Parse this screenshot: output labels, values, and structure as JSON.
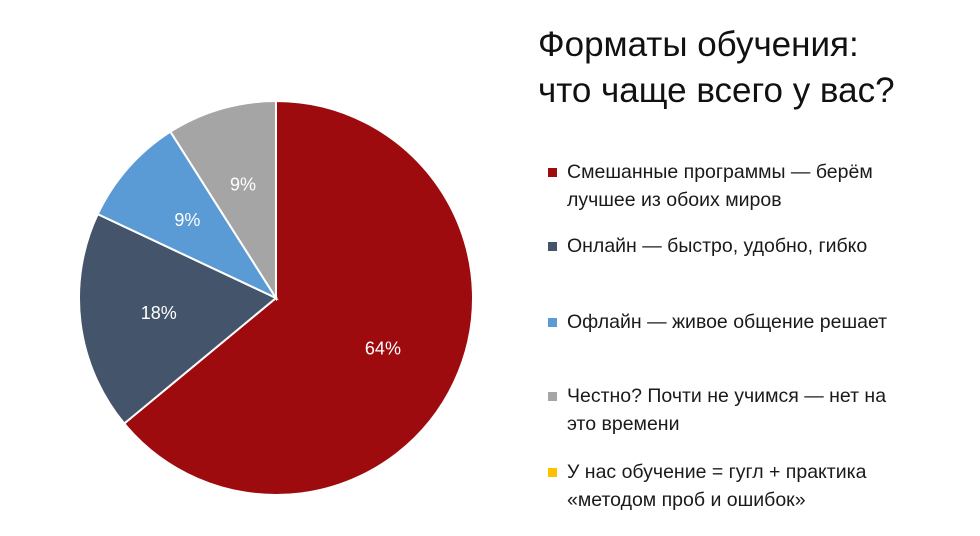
{
  "title": "Форматы обучения:\nчто чаще всего у вас?",
  "chart_data": {
    "type": "pie",
    "title": "Форматы обучения: что чаще всего у вас?",
    "slices": [
      {
        "label": "Смешанные программы — берём лучшее из обоих миров",
        "value": 64,
        "display": "64%",
        "color": "#9E0B0F"
      },
      {
        "label": "Онлайн — быстро, удобно, гибко",
        "value": 18,
        "display": "18%",
        "color": "#44546A"
      },
      {
        "label": "Офлайн — живое общение решает",
        "value": 9,
        "display": "9%",
        "color": "#5B9BD5"
      },
      {
        "label": "Честно? Почти не учимся — нет на это времени",
        "value": 9,
        "display": "9%",
        "color": "#A5A5A5"
      },
      {
        "label": "У нас обучение = гугл + практика «методом проб и ошибок»",
        "value": 0,
        "display": "",
        "color": "#FFC000"
      }
    ],
    "legend_position": "right"
  },
  "legend": [
    {
      "text": "Смешанные программы — берём\nлучшее из обоих миров",
      "color": "#9E0B0F"
    },
    {
      "text": "Онлайн — быстро, удобно, гибко",
      "color": "#44546A"
    },
    {
      "text": "Офлайн — живое общение решает",
      "color": "#5B9BD5"
    },
    {
      "text": "Честно? Почти не учимся — нет на\nэто времени",
      "color": "#A5A5A5"
    },
    {
      "text": "У нас обучение = гугл + практика\n«методом проб и ошибок»",
      "color": "#FFC000"
    }
  ]
}
